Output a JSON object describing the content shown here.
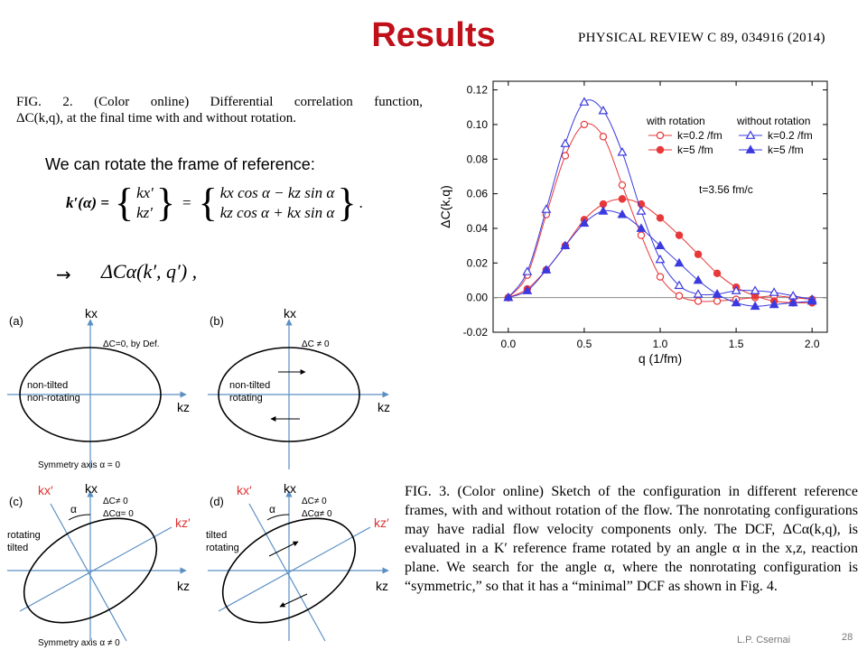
{
  "slide": {
    "title": "Results",
    "journal_ref": "PHYSICAL REVIEW C 89, 034916 (2014)",
    "fig2_caption_line1": "FIG. 2. (Color online) Differential correlation function,",
    "fig2_caption_line2": "ΔC(k,q), at the final time with and without rotation.",
    "rotate_text": "We can rotate the frame of reference:",
    "formula_lhs": "k′(α) =",
    "formula_kx": "kx′",
    "formula_kz": "kz′",
    "formula_row1": "kx cos α − kz sin α",
    "formula_row2": "kz cos α + kx sin α",
    "arrow_symbol": "→",
    "formula2": "ΔCα(k′, q′) ,",
    "fig3_caption": "FIG. 3. (Color online) Sketch of the configuration in different reference frames, with and without rotation of the flow. The nonrotating configurations may have radial flow velocity components only. The DCF, ΔCα(k,q), is evaluated in a K′ reference frame rotated by an angle α in the x,z, reaction plane. We search for the angle α, where the nonrotating configuration is “symmetric,” so that it has a “minimal” DCF as shown in Fig. 4.",
    "author": "L.P. Csernai",
    "page_number": "28"
  },
  "sketches": {
    "a": {
      "tag": "(a)",
      "kx": "kx",
      "kz": "kz",
      "note": "ΔC=0, by Def.",
      "label1": "non-tilted",
      "label2": "non-rotating",
      "axis_note": "Symmetry axis α = 0"
    },
    "b": {
      "tag": "(b)",
      "kx": "kx",
      "kz": "kz",
      "note": "ΔC ≠ 0",
      "label1": "non-tilted",
      "label2": "rotating"
    },
    "c": {
      "tag": "(c)",
      "kx": "kx",
      "kz": "kz",
      "kxp": "kx′",
      "kzp": "kz′",
      "alpha": "α",
      "note1": "ΔC≠ 0",
      "note2": "ΔCα= 0",
      "label1": "rotating",
      "label2": "tilted",
      "axis_note": "Symmetry axis α ≠ 0"
    },
    "d": {
      "tag": "(d)",
      "kx": "kx",
      "kz": "kz",
      "kxp": "kx′",
      "kzp": "kz′",
      "alpha": "α",
      "note1": "ΔC≠ 0",
      "note2": "ΔCα≠ 0",
      "label1": "tilted",
      "label2": "rotating"
    }
  },
  "chart_data": {
    "type": "line",
    "xlabel": "q (1/fm)",
    "ylabel": "ΔC(k,q)",
    "xlim": [
      -0.1,
      2.1
    ],
    "ylim": [
      -0.02,
      0.125
    ],
    "xticks": [
      0.0,
      0.5,
      1.0,
      1.5,
      2.0
    ],
    "yticks": [
      -0.02,
      0.0,
      0.02,
      0.04,
      0.06,
      0.08,
      0.1,
      0.12
    ],
    "annotation": "t=3.56 fm/c",
    "legend_headers": [
      "with rotation",
      "without rotation"
    ],
    "legend_placement": "top-right",
    "colors": {
      "red": "#e8383a",
      "blue": "#3a3ae0"
    },
    "series": [
      {
        "name": "k=0.2 /fm",
        "group": "with rotation",
        "color": "#e8383a",
        "marker": "circle-open",
        "x": [
          0.0,
          0.125,
          0.25,
          0.375,
          0.5,
          0.625,
          0.75,
          0.875,
          1.0,
          1.125,
          1.25,
          1.375,
          1.5,
          1.625,
          1.75,
          1.875,
          2.0
        ],
        "y": [
          0.0,
          0.013,
          0.048,
          0.082,
          0.1,
          0.093,
          0.065,
          0.036,
          0.012,
          0.001,
          -0.002,
          -0.002,
          -0.001,
          0.0,
          0.001,
          0.0,
          -0.001
        ]
      },
      {
        "name": "k=5 /fm",
        "group": "with rotation",
        "color": "#e8383a",
        "marker": "circle-filled",
        "x": [
          0.0,
          0.125,
          0.25,
          0.375,
          0.5,
          0.625,
          0.75,
          0.875,
          1.0,
          1.125,
          1.25,
          1.375,
          1.5,
          1.625,
          1.75,
          1.875,
          2.0
        ],
        "y": [
          0.0,
          0.005,
          0.016,
          0.03,
          0.045,
          0.054,
          0.057,
          0.054,
          0.046,
          0.036,
          0.025,
          0.014,
          0.006,
          0.001,
          -0.002,
          -0.003,
          -0.003
        ]
      },
      {
        "name": "k=0.2 /fm",
        "group": "without rotation",
        "color": "#3a3ae0",
        "marker": "triangle-open",
        "x": [
          0.0,
          0.125,
          0.25,
          0.375,
          0.5,
          0.625,
          0.75,
          0.875,
          1.0,
          1.125,
          1.25,
          1.375,
          1.5,
          1.625,
          1.75,
          1.875,
          2.0
        ],
        "y": [
          0.0,
          0.015,
          0.051,
          0.089,
          0.113,
          0.108,
          0.084,
          0.05,
          0.022,
          0.007,
          0.002,
          0.002,
          0.004,
          0.004,
          0.003,
          0.001,
          -0.001
        ]
      },
      {
        "name": "k=5 /fm",
        "group": "without rotation",
        "color": "#3a3ae0",
        "marker": "triangle-filled",
        "x": [
          0.0,
          0.125,
          0.25,
          0.375,
          0.5,
          0.625,
          0.75,
          0.875,
          1.0,
          1.125,
          1.25,
          1.375,
          1.5,
          1.625,
          1.75,
          1.875,
          2.0
        ],
        "y": [
          0.0,
          0.004,
          0.016,
          0.03,
          0.043,
          0.05,
          0.048,
          0.04,
          0.03,
          0.02,
          0.01,
          0.002,
          -0.003,
          -0.005,
          -0.004,
          -0.003,
          -0.002
        ]
      }
    ]
  }
}
